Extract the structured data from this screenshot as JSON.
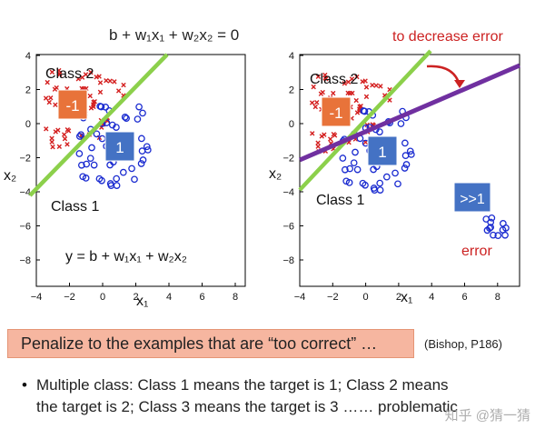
{
  "left_plot": {
    "equation": "b + w₁x₁ + w₂x₂ = 0",
    "class2_label": "Class 2",
    "class1_label": "Class 1",
    "target_minus1": "-1",
    "target_1": "1",
    "lower_equation": "y = b + w₁x₁ + w₂x₂",
    "x_axis_label": "x₁",
    "y_axis_label": "x₂",
    "x_ticks": [
      "−4",
      "−2",
      "0",
      "2",
      "4",
      "6",
      "8"
    ],
    "y_ticks": [
      "4",
      "2",
      "0",
      "−2",
      "−4",
      "−6",
      "−8"
    ]
  },
  "right_plot": {
    "annotation": "to decrease error",
    "class2_label": "Class 2",
    "class1_label": "Class 1",
    "target_minus1": "-1",
    "target_1": "1",
    "target_much_greater": ">>1",
    "error_label": "error",
    "x_axis_label": "x₁",
    "y_axis_label": "x₂",
    "x_ticks": [
      "−4",
      "−2",
      "0",
      "2",
      "4",
      "6",
      "8"
    ],
    "y_ticks": [
      "4",
      "2",
      "0",
      "−2",
      "−4",
      "−6",
      "−8"
    ]
  },
  "penalty_text": "Penalize to the examples that are “too correct” …",
  "reference": "(Bishop, P186)",
  "bullet": {
    "line1": "Multiple class: Class 1 means the target is 1; Class 2 means",
    "line2": "the target is 2; Class 3 means the target is 3 …… problematic"
  },
  "watermark": "知乎 @猜一猜",
  "colors": {
    "green_line": "#8cd04b",
    "purple_line": "#7030a0",
    "red_annotation": "#cc2222",
    "orange_box": "#e8733a",
    "blue_box": "#4472c4",
    "penalty_bg": "#f6b6a0",
    "cross_marker": "#d42020",
    "circle_marker": "#1a2bd0"
  }
}
